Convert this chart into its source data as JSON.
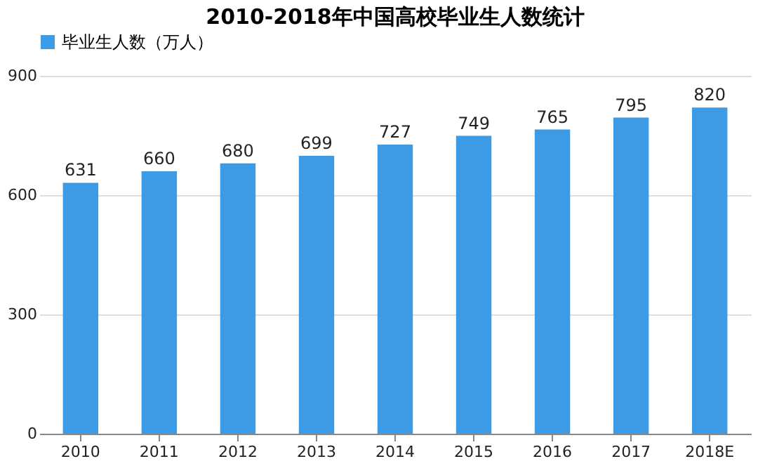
{
  "chart_data": {
    "type": "bar",
    "title": "2010-2018年中国高校毕业生人数统计",
    "categories": [
      "2010",
      "2011",
      "2012",
      "2013",
      "2014",
      "2015",
      "2016",
      "2017",
      "2018E"
    ],
    "series": [
      {
        "name": "毕业生人数（万人）",
        "color": "#3d9ae5",
        "values": [
          631,
          660,
          680,
          699,
          727,
          749,
          765,
          795,
          820
        ]
      }
    ],
    "ylim": [
      0,
      900
    ],
    "yticks": [
      0,
      300,
      600,
      900
    ],
    "grid": "y",
    "legend": "top",
    "data_labels": true
  }
}
